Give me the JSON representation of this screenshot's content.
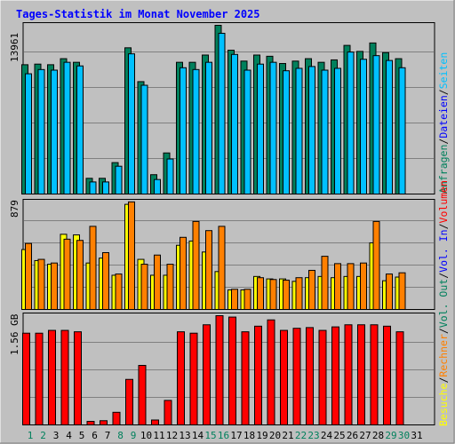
{
  "title": "Tages-Statistik im Monat November 2025",
  "colors": {
    "background": "#c0c0c0",
    "title": "#0000ff",
    "hits": "#00805c",
    "files": "#0000ff",
    "pages": "#00c0ff",
    "visits": "#ffff00",
    "sites": "#ff8000",
    "kbytes": "#ff0000",
    "weekend_label": "#00805c",
    "weekday_label": "#000000"
  },
  "right_legend": {
    "top": [
      {
        "text": "Anfragen",
        "color": "#00805c"
      },
      {
        "text": "/",
        "color": "#000000"
      },
      {
        "text": "Dateien",
        "color": "#0000ff"
      },
      {
        "text": "/",
        "color": "#000000"
      },
      {
        "text": "Seiten",
        "color": "#00c0ff"
      }
    ],
    "middle": [
      {
        "text": "Besuche",
        "color": "#ffff00"
      },
      {
        "text": "/",
        "color": "#000000"
      },
      {
        "text": "Rechner",
        "color": "#ff8000"
      },
      {
        "text": "/",
        "color": "#000000"
      },
      {
        "text": "Vol. Out",
        "color": "#00805c"
      },
      {
        "text": "/",
        "color": "#000000"
      },
      {
        "text": "Vol. In",
        "color": "#0000ff"
      },
      {
        "text": "/",
        "color": "#000000"
      },
      {
        "text": "Volumen",
        "color": "#ff0000"
      }
    ]
  },
  "chart_data": [
    {
      "type": "bar",
      "panel": "requests",
      "y_max_label": "13961",
      "ylim": [
        0,
        13961
      ],
      "categories": [
        "1",
        "2",
        "3",
        "4",
        "5",
        "6",
        "7",
        "8",
        "9",
        "10",
        "11",
        "12",
        "13",
        "14",
        "15",
        "16",
        "17",
        "18",
        "19",
        "20",
        "21",
        "22",
        "23",
        "24",
        "25",
        "26",
        "27",
        "28",
        "29",
        "30",
        "31"
      ],
      "series": [
        {
          "name": "Anfragen",
          "values": [
            10700,
            10750,
            10700,
            11200,
            10900,
            1300,
            1300,
            2600,
            12100,
            9300,
            1600,
            3400,
            10900,
            10900,
            11500,
            13961,
            11900,
            11000,
            11500,
            11400,
            10800,
            11000,
            11200,
            10900,
            11100,
            12300,
            11800,
            12500,
            11700,
            11200,
            null
          ]
        },
        {
          "name": "Dateien",
          "values": [
            9950,
            10300,
            10250,
            10900,
            10600,
            1000,
            1000,
            2300,
            11600,
            9000,
            1200,
            2900,
            10450,
            10300,
            10900,
            13300,
            11550,
            10250,
            10750,
            10900,
            10200,
            10400,
            10550,
            10250,
            10400,
            11750,
            11150,
            11450,
            11050,
            10450,
            null
          ]
        },
        {
          "name": "Seiten",
          "values": [
            9950,
            10300,
            10250,
            10900,
            10600,
            1000,
            1000,
            2300,
            11600,
            9000,
            1200,
            2900,
            10450,
            10300,
            10900,
            13300,
            11550,
            10250,
            10750,
            10900,
            10200,
            10400,
            10550,
            10250,
            10400,
            11750,
            11150,
            11450,
            11050,
            10450,
            null
          ]
        }
      ]
    },
    {
      "type": "bar",
      "panel": "visits",
      "y_max_label": "879",
      "ylim": [
        0,
        879
      ],
      "categories": [
        "1",
        "2",
        "3",
        "4",
        "5",
        "6",
        "7",
        "8",
        "9",
        "10",
        "11",
        "12",
        "13",
        "14",
        "15",
        "16",
        "17",
        "18",
        "19",
        "20",
        "21",
        "22",
        "23",
        "24",
        "25",
        "26",
        "27",
        "28",
        "29",
        "30",
        "31"
      ],
      "series": [
        {
          "name": "Besuche",
          "values": [
            490,
            400,
            370,
            615,
            610,
            380,
            420,
            280,
            860,
            410,
            280,
            280,
            525,
            560,
            470,
            310,
            160,
            160,
            270,
            250,
            250,
            230,
            260,
            270,
            260,
            270,
            270,
            545,
            235,
            265,
            null
          ]
        },
        {
          "name": "Rechner",
          "values": [
            540,
            410,
            380,
            575,
            565,
            680,
            465,
            290,
            880,
            370,
            445,
            370,
            590,
            720,
            645,
            680,
            165,
            165,
            260,
            245,
            240,
            260,
            320,
            435,
            375,
            375,
            380,
            720,
            290,
            300,
            null
          ]
        }
      ]
    },
    {
      "type": "bar",
      "panel": "volume",
      "y_max_label": "1.56 GB",
      "ylim": [
        0,
        1.56
      ],
      "categories": [
        "1",
        "2",
        "3",
        "4",
        "5",
        "6",
        "7",
        "8",
        "9",
        "10",
        "11",
        "12",
        "13",
        "14",
        "15",
        "16",
        "17",
        "18",
        "19",
        "20",
        "21",
        "22",
        "23",
        "24",
        "25",
        "26",
        "27",
        "28",
        "29",
        "30",
        "31"
      ],
      "series": [
        {
          "name": "Volumen",
          "values": [
            1.31,
            1.31,
            1.35,
            1.35,
            1.33,
            0.05,
            0.06,
            0.18,
            0.65,
            0.85,
            0.07,
            0.35,
            1.33,
            1.31,
            1.43,
            1.56,
            1.54,
            1.33,
            1.41,
            1.5,
            1.35,
            1.38,
            1.39,
            1.35,
            1.4,
            1.43,
            1.43,
            1.43,
            1.41,
            1.33,
            null
          ]
        }
      ]
    }
  ],
  "x_labels": [
    "1",
    "2",
    "3",
    "4",
    "5",
    "6",
    "7",
    "8",
    "9",
    "10",
    "11",
    "12",
    "13",
    "14",
    "15",
    "16",
    "17",
    "18",
    "19",
    "20",
    "21",
    "22",
    "23",
    "24",
    "25",
    "26",
    "27",
    "28",
    "29",
    "30",
    "31"
  ],
  "weekend_days": [
    "1",
    "2",
    "8",
    "9",
    "15",
    "16",
    "22",
    "23",
    "29",
    "30"
  ]
}
